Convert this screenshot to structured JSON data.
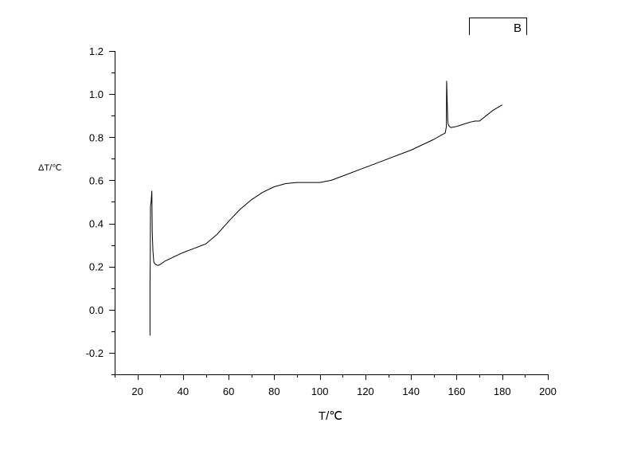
{
  "chart_data": {
    "type": "line",
    "title": "",
    "xlabel": "T/℃",
    "ylabel": "ΔT/℃",
    "xlim": [
      10,
      200
    ],
    "ylim": [
      -0.3,
      1.2
    ],
    "x_ticks": [
      20,
      40,
      60,
      80,
      100,
      120,
      140,
      160,
      180,
      200
    ],
    "x_tick_labels": [
      "20",
      "40",
      "60",
      "80",
      "100",
      "120",
      "140",
      "160",
      "180",
      "200"
    ],
    "y_ticks": [
      -0.2,
      0.0,
      0.2,
      0.4,
      0.6,
      0.8,
      1.0,
      1.2
    ],
    "y_tick_labels": [
      "-0.2",
      "0.0",
      "0.2",
      "0.4",
      "0.6",
      "0.8",
      "1.0",
      "1.2"
    ],
    "grid": false,
    "legend_position": "top-right",
    "line_color": "#000000",
    "series": [
      {
        "name": "B",
        "x": [
          25.5,
          25.5,
          25.6,
          25.7,
          26.0,
          26.3,
          26.5,
          26.8,
          27.2,
          28.0,
          29.0,
          30.0,
          32.0,
          35.0,
          40.0,
          45.0,
          50.0,
          55.0,
          60.0,
          65.0,
          70.0,
          75.0,
          80.0,
          85.0,
          90.0,
          95.0,
          100.0,
          105.0,
          110.0,
          120.0,
          130.0,
          140.0,
          150.0,
          155.0,
          155.5,
          155.6,
          155.9,
          156.1,
          156.3,
          156.8,
          157.5,
          160.0,
          163.0,
          166.0,
          168.0,
          170.0,
          173.0,
          176.0,
          180.0
        ],
        "y": [
          -0.12,
          0.12,
          0.22,
          0.48,
          0.5,
          0.55,
          0.36,
          0.27,
          0.22,
          0.21,
          0.205,
          0.21,
          0.225,
          0.24,
          0.265,
          0.285,
          0.305,
          0.35,
          0.41,
          0.465,
          0.51,
          0.545,
          0.57,
          0.585,
          0.59,
          0.59,
          0.59,
          0.6,
          0.62,
          0.66,
          0.7,
          0.74,
          0.79,
          0.82,
          0.85,
          1.06,
          0.96,
          0.88,
          0.86,
          0.85,
          0.845,
          0.85,
          0.86,
          0.87,
          0.875,
          0.875,
          0.9,
          0.925,
          0.95
        ]
      }
    ]
  }
}
